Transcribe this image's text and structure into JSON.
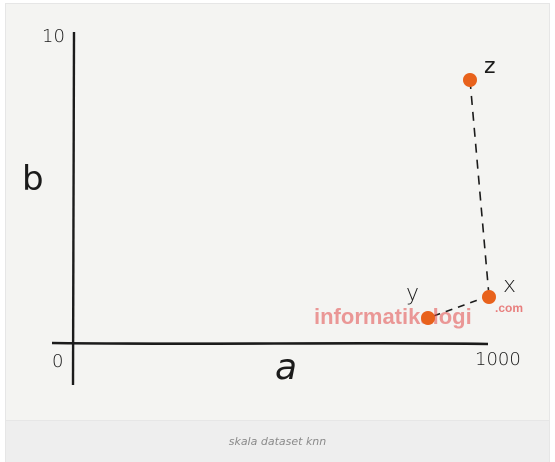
{
  "diagram": {
    "axis": {
      "x_label": "a",
      "y_label": "b",
      "x_min_label": "0",
      "x_max_label": "1000",
      "y_max_label": "10"
    },
    "points": [
      {
        "name": "z"
      },
      {
        "name": "x"
      },
      {
        "name": "y"
      }
    ],
    "colors": {
      "point": "#e8621c",
      "ink": "#1b1b1b",
      "watermark": "#e24b4b"
    },
    "watermark": {
      "main": "informatikalogi",
      "suffix": ".com"
    }
  },
  "caption": "skala dataset knn"
}
